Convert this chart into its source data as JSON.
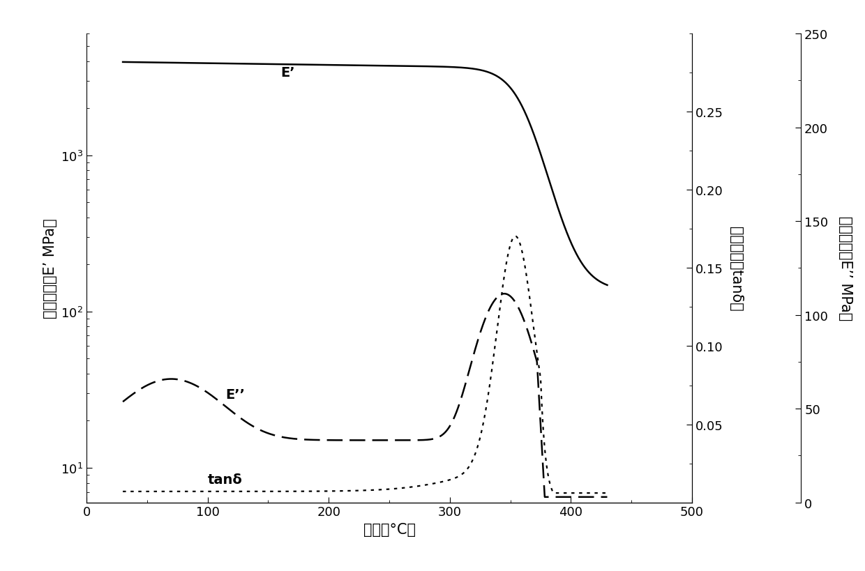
{
  "xlabel": "温度（°C）",
  "ylabel_left": "储能模量（E’ MPa）",
  "ylabel_mid": "损耗因子（tanδ）",
  "ylabel_right": "损耗模量（E’’ MPa）",
  "xlim": [
    0,
    500
  ],
  "xticks": [
    0,
    100,
    200,
    300,
    400,
    500
  ],
  "ylim_log": [
    6,
    6000
  ],
  "yticks_log": [
    10,
    100,
    1000
  ],
  "ylim_tand": [
    0,
    0.3
  ],
  "yticks_tand": [
    0.05,
    0.1,
    0.15,
    0.2,
    0.25
  ],
  "ylim_epp": [
    0,
    250
  ],
  "yticks_epp": [
    0,
    50,
    100,
    150,
    200,
    250
  ],
  "Ep_label": "E’",
  "Epp_label": "E’’",
  "tand_label": "tanδ",
  "background": "#ffffff",
  "fontsize_label": 15,
  "fontsize_tick": 13,
  "fontsize_annot": 14
}
